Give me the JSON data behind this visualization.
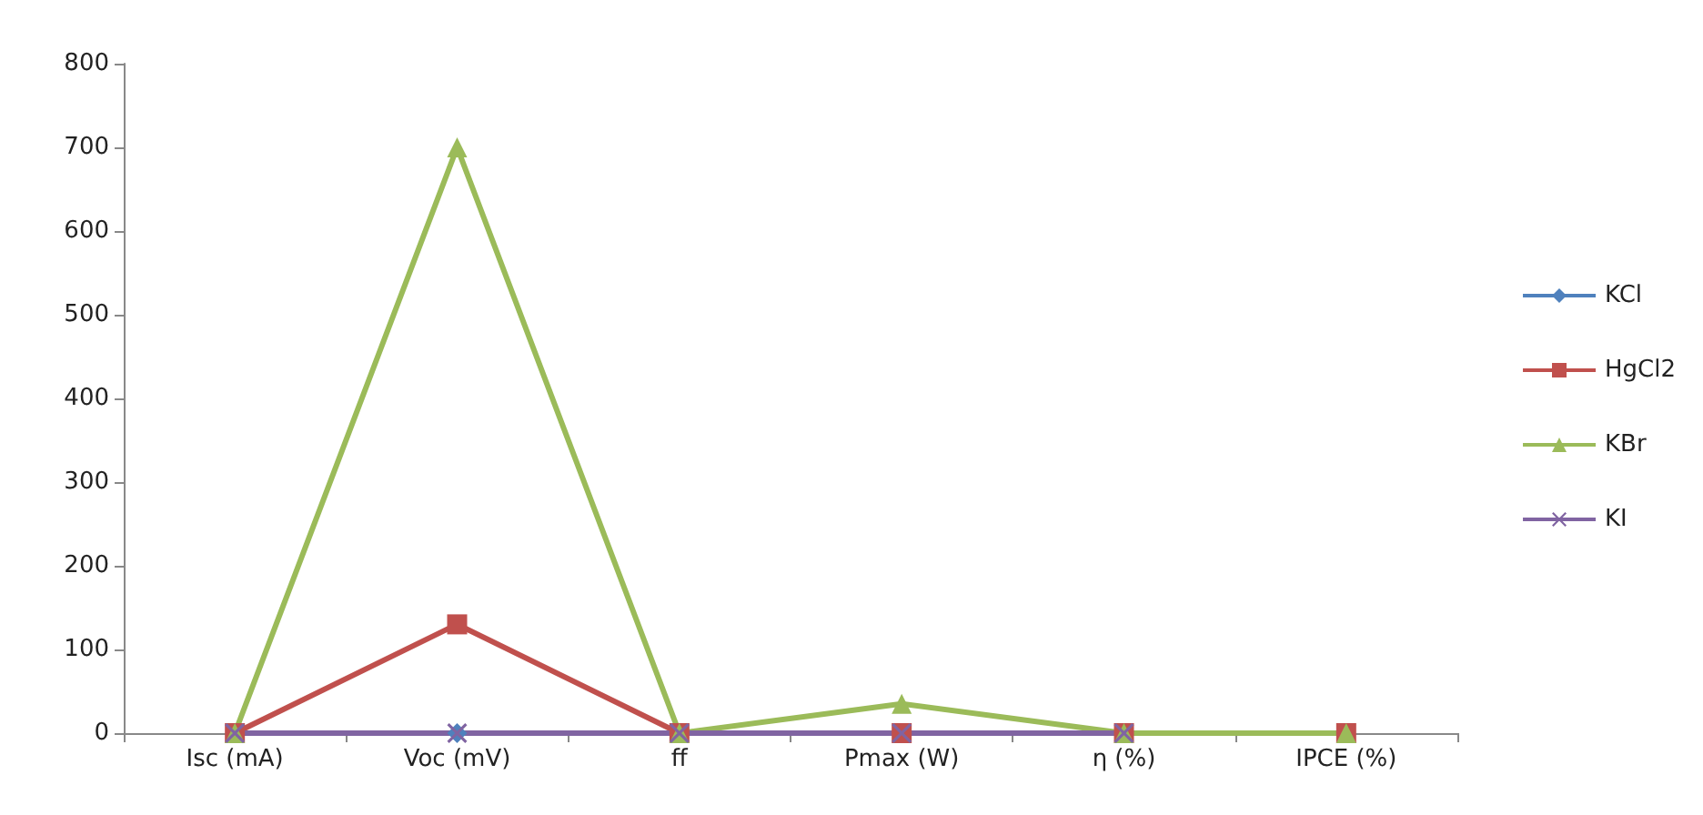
{
  "chart_data": {
    "type": "line",
    "categories": [
      "Isc (mA)",
      "Voc (mV)",
      "ff",
      "Pmax (W)",
      "η (%)",
      "IPCE (%)"
    ],
    "series": [
      {
        "name": "KCl",
        "color": "#4f81bd",
        "marker": "diamond",
        "values": [
          null,
          0,
          null,
          null,
          null,
          null
        ]
      },
      {
        "name": "HgCl2",
        "color": "#c0504d",
        "marker": "square",
        "values": [
          0,
          130,
          0,
          0,
          0,
          0
        ]
      },
      {
        "name": "KBr",
        "color": "#9bbb59",
        "marker": "triangle",
        "values": [
          0,
          700,
          0,
          35,
          0,
          0
        ]
      },
      {
        "name": "KI",
        "color": "#8064a2",
        "marker": "cross",
        "values": [
          0,
          0,
          0,
          0,
          0,
          null
        ]
      }
    ],
    "ylim": [
      0,
      800
    ],
    "yticks": [
      0,
      100,
      200,
      300,
      400,
      500,
      600,
      700,
      800
    ],
    "grid": false,
    "legend": "right"
  }
}
